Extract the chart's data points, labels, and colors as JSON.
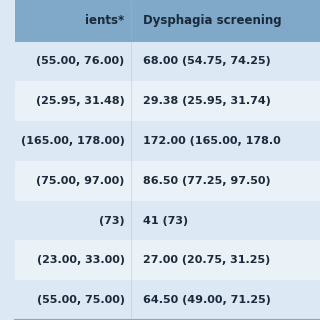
{
  "header_bg": "#7fa8c9",
  "row_bg_light": "#dce8f3",
  "row_bg_white": "#eaf2f8",
  "header_text_color": "#1a2a3a",
  "cell_text_color": "#1a2a3a",
  "col1_header": "ients*",
  "col2_header": "Dysphagia screening",
  "rows": [
    [
      "(55.00, 76.00)",
      "68.00 (54.75, 74.25)"
    ],
    [
      "(25.95, 31.48)",
      "29.38 (25.95, 31.74)"
    ],
    [
      "(165.00, 178.00)",
      "172.00 (165.00, 178.0"
    ],
    [
      "(75.00, 97.00)",
      "86.50 (77.25, 97.50)"
    ],
    [
      "(73)",
      "41 (73)"
    ],
    [
      "(23.00, 33.00)",
      "27.00 (20.75, 31.25)"
    ],
    [
      "(55.00, 75.00)",
      "64.50 (49.00, 71.25)"
    ]
  ],
  "figsize": [
    3.2,
    3.2
  ],
  "dpi": 100
}
